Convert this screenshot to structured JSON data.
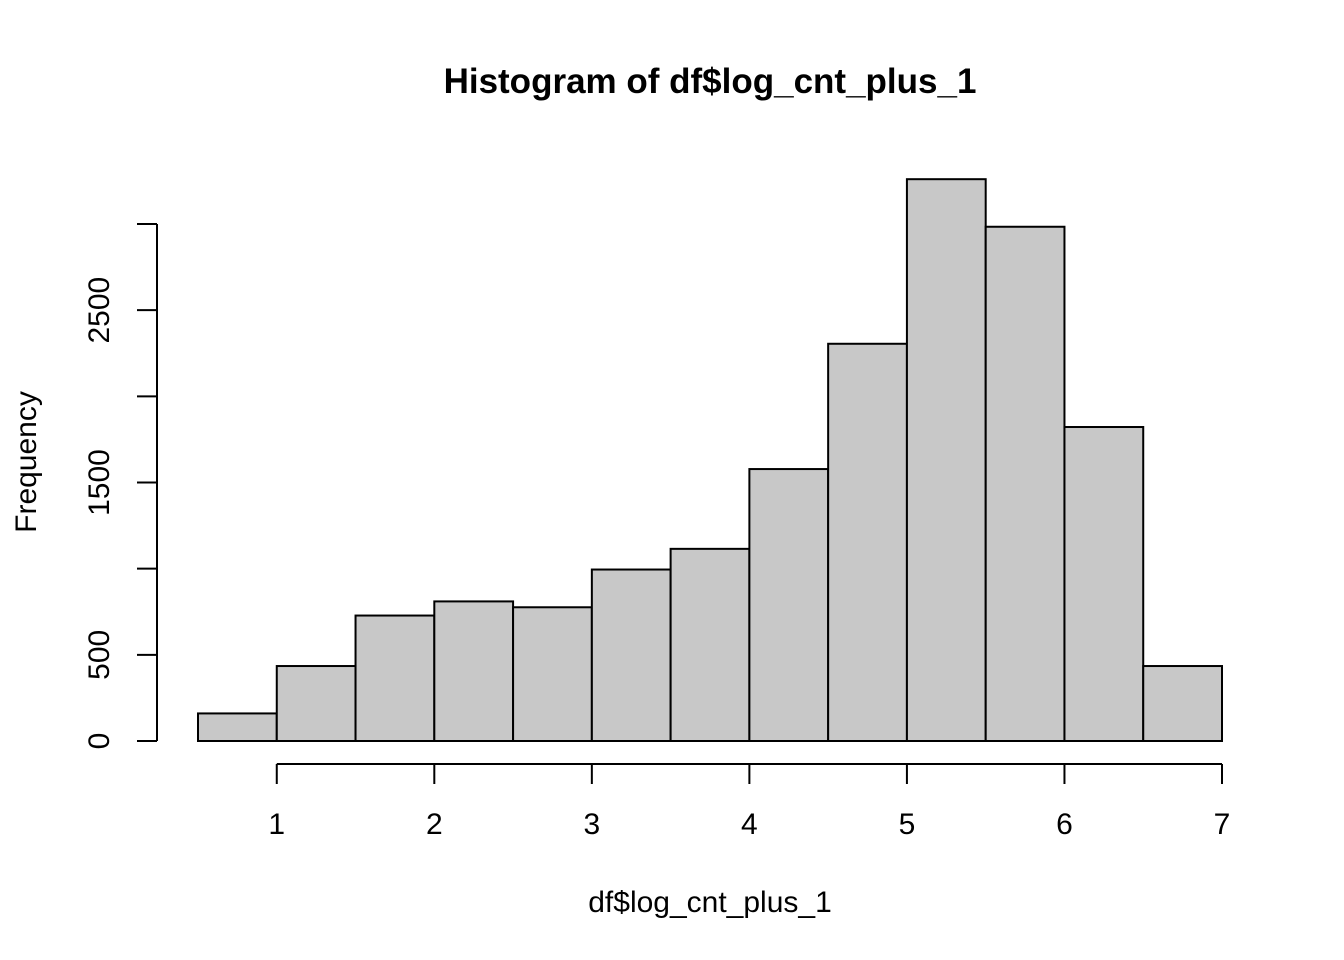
{
  "chart_data": {
    "type": "bar",
    "title": "Histogram of df$log_cnt_plus_1",
    "xlabel": "df$log_cnt_plus_1",
    "ylabel": "Frequency",
    "bins": [
      {
        "x0": 0.5,
        "x1": 1.0,
        "count": 160
      },
      {
        "x0": 1.0,
        "x1": 1.5,
        "count": 435
      },
      {
        "x0": 1.5,
        "x1": 2.0,
        "count": 728
      },
      {
        "x0": 2.0,
        "x1": 2.5,
        "count": 810
      },
      {
        "x0": 2.5,
        "x1": 3.0,
        "count": 776
      },
      {
        "x0": 3.0,
        "x1": 3.5,
        "count": 995
      },
      {
        "x0": 3.5,
        "x1": 4.0,
        "count": 1115
      },
      {
        "x0": 4.0,
        "x1": 4.5,
        "count": 1578
      },
      {
        "x0": 4.5,
        "x1": 5.0,
        "count": 2305
      },
      {
        "x0": 5.0,
        "x1": 5.5,
        "count": 3260
      },
      {
        "x0": 5.5,
        "x1": 6.0,
        "count": 2984
      },
      {
        "x0": 6.0,
        "x1": 6.5,
        "count": 1822
      },
      {
        "x0": 6.5,
        "x1": 7.0,
        "count": 435
      }
    ],
    "x_ticks": [
      1,
      2,
      3,
      4,
      5,
      6,
      7
    ],
    "y_ticks": [
      0,
      500,
      1000,
      1500,
      2000,
      2500,
      3000
    ],
    "y_tick_labels": [
      "0",
      "500",
      "",
      "1500",
      "",
      "2500",
      ""
    ],
    "xlim": [
      0.5,
      7
    ],
    "ylim": [
      0,
      3300
    ],
    "grid": false,
    "bar_color": "#c8c8c8",
    "edge_color": "#000000"
  }
}
